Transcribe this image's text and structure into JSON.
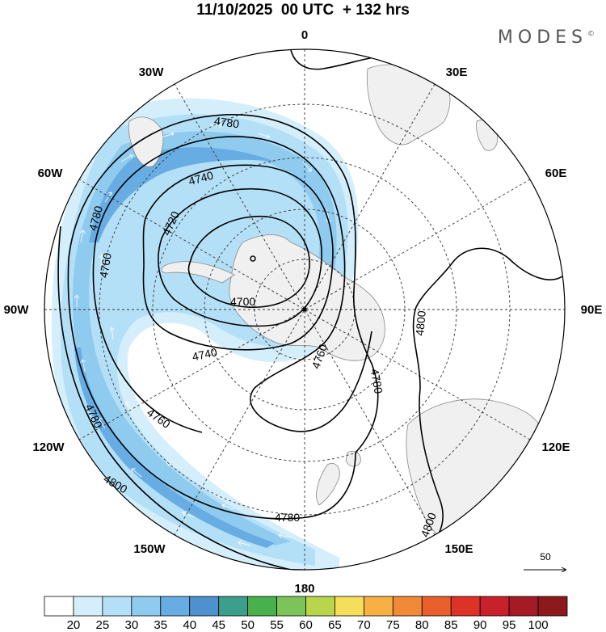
{
  "header": {
    "title": "11/10/2025  00 UTC  + 132 hrs",
    "brand": "MODES",
    "brand_mark": "©"
  },
  "map": {
    "projection": "south polar stereographic",
    "longitude_labels": {
      "0": "0",
      "30E": "30E",
      "60E": "60E",
      "90E": "90E",
      "120E": "120E",
      "150E": "150E",
      "180": "180",
      "150W": "150W",
      "120W": "120W",
      "90W": "90W",
      "60W": "60W",
      "30W": "30W"
    },
    "contour_labels": [
      "4700",
      "4720",
      "4740",
      "4740",
      "4760",
      "4760",
      "4760",
      "4780",
      "4780",
      "4780",
      "4780",
      "4780",
      "4800",
      "4800",
      "4800"
    ],
    "contour_levels": [
      4700,
      4720,
      4740,
      4760,
      4780,
      4800
    ],
    "reference_vector": {
      "label": "50"
    },
    "colors": {
      "land": "#f0f0f0",
      "coast": "#888888",
      "contour": "#000000",
      "grid": "#333333"
    }
  },
  "colorbar": {
    "ticks": [
      "20",
      "25",
      "30",
      "35",
      "40",
      "45",
      "50",
      "55",
      "60",
      "65",
      "70",
      "75",
      "80",
      "85",
      "90",
      "95",
      "100"
    ],
    "colors": [
      "#ffffff",
      "#d4effb",
      "#b4e0f7",
      "#8fcbef",
      "#67ade3",
      "#4d92cf",
      "#3c9e8c",
      "#48b04c",
      "#7cc45a",
      "#b8d54c",
      "#f5de5a",
      "#f6b044",
      "#f08a38",
      "#e9602d",
      "#dc3326",
      "#c8212b",
      "#a41b25",
      "#8c1a1c"
    ]
  }
}
